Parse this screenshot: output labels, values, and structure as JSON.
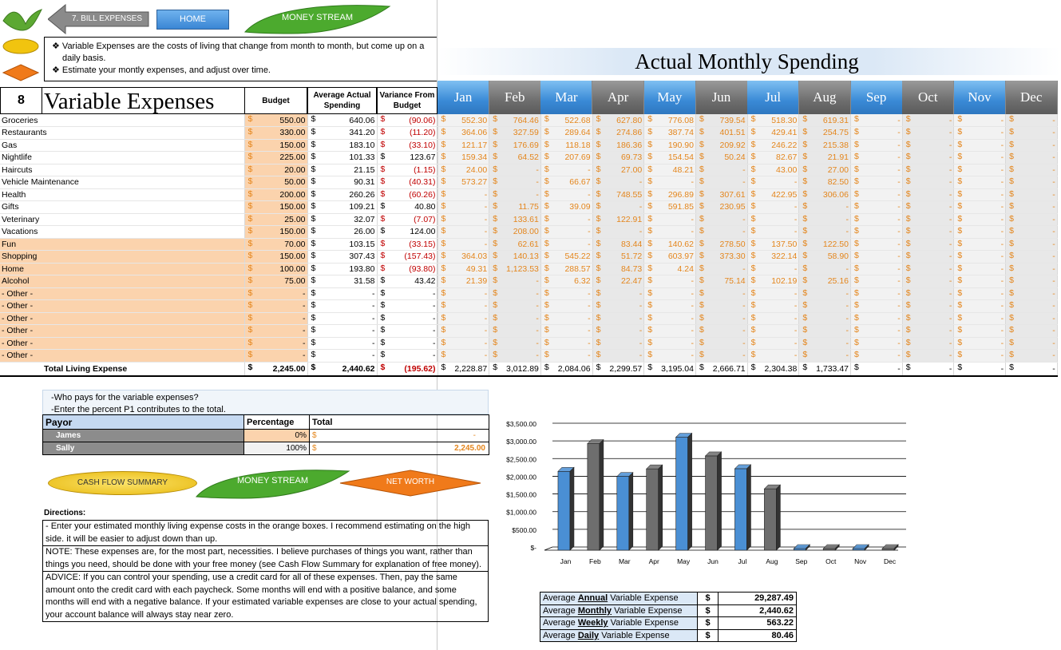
{
  "nav": {
    "back_label": "7. BILL EXPENSES",
    "home_label": "HOME",
    "money_stream_label": "MONEY STREAM"
  },
  "info": {
    "line1": "Variable Expenses are the costs of living that change from month to month, but come up on a daily basis.",
    "line2": "Estimate your montly expenses, and adjust over time."
  },
  "header": {
    "title": "Actual Monthly Spending",
    "section_number": "8",
    "section_title": "Variable Expenses",
    "col_budget": "Budget",
    "col_avg": "Average Actual Spending",
    "col_var": "Variance From Budget",
    "months": [
      "Jan",
      "Feb",
      "Mar",
      "Apr",
      "May",
      "Jun",
      "Jul",
      "Aug",
      "Sep",
      "Oct",
      "Nov",
      "Dec"
    ]
  },
  "rows": [
    {
      "label": "Groceries",
      "budget": "550.00",
      "avg": "640.06",
      "var": "(90.06)",
      "neg": true,
      "m": [
        "552.30",
        "764.46",
        "522.68",
        "627.80",
        "776.08",
        "739.54",
        "518.30",
        "619.31",
        "-",
        "-",
        "-",
        "-"
      ]
    },
    {
      "label": "Restaurants",
      "budget": "330.00",
      "avg": "341.20",
      "var": "(11.20)",
      "neg": true,
      "m": [
        "364.06",
        "327.59",
        "289.64",
        "274.86",
        "387.74",
        "401.51",
        "429.41",
        "254.75",
        "-",
        "-",
        "-",
        "-"
      ]
    },
    {
      "label": "Gas",
      "budget": "150.00",
      "avg": "183.10",
      "var": "(33.10)",
      "neg": true,
      "m": [
        "121.17",
        "176.69",
        "118.18",
        "186.36",
        "190.90",
        "209.92",
        "246.22",
        "215.38",
        "-",
        "-",
        "-",
        "-"
      ]
    },
    {
      "label": "Nightlife",
      "budget": "225.00",
      "avg": "101.33",
      "var": "123.67",
      "neg": false,
      "m": [
        "159.34",
        "64.52",
        "207.69",
        "69.73",
        "154.54",
        "50.24",
        "82.67",
        "21.91",
        "-",
        "-",
        "-",
        "-"
      ]
    },
    {
      "label": "Haircuts",
      "budget": "20.00",
      "avg": "21.15",
      "var": "(1.15)",
      "neg": true,
      "m": [
        "24.00",
        "-",
        "-",
        "27.00",
        "48.21",
        "-",
        "43.00",
        "27.00",
        "-",
        "-",
        "-",
        "-"
      ]
    },
    {
      "label": "Vehicle Maintenance",
      "budget": "50.00",
      "avg": "90.31",
      "var": "(40.31)",
      "neg": true,
      "m": [
        "573.27",
        "-",
        "66.67",
        "-",
        "-",
        "-",
        "-",
        "82.50",
        "-",
        "-",
        "-",
        "-"
      ]
    },
    {
      "label": "Health",
      "budget": "200.00",
      "avg": "260.26",
      "var": "(60.26)",
      "neg": true,
      "m": [
        "-",
        "-",
        "-",
        "748.55",
        "296.89",
        "307.61",
        "422.95",
        "306.06",
        "-",
        "-",
        "-",
        "-"
      ]
    },
    {
      "label": "Gifts",
      "budget": "150.00",
      "avg": "109.21",
      "var": "40.80",
      "neg": false,
      "m": [
        "-",
        "11.75",
        "39.09",
        "-",
        "591.85",
        "230.95",
        "-",
        "-",
        "-",
        "-",
        "-",
        "-"
      ]
    },
    {
      "label": "Veterinary",
      "budget": "25.00",
      "avg": "32.07",
      "var": "(7.07)",
      "neg": true,
      "m": [
        "-",
        "133.61",
        "-",
        "122.91",
        "-",
        "-",
        "-",
        "-",
        "-",
        "-",
        "-",
        "-"
      ]
    },
    {
      "label": "Vacations",
      "budget": "150.00",
      "avg": "26.00",
      "var": "124.00",
      "neg": false,
      "m": [
        "-",
        "208.00",
        "-",
        "-",
        "-",
        "-",
        "-",
        "-",
        "-",
        "-",
        "-",
        "-"
      ]
    },
    {
      "label": "Fun",
      "custom": true,
      "budget": "70.00",
      "avg": "103.15",
      "var": "(33.15)",
      "neg": true,
      "m": [
        "-",
        "62.61",
        "-",
        "83.44",
        "140.62",
        "278.50",
        "137.50",
        "122.50",
        "-",
        "-",
        "-",
        "-"
      ]
    },
    {
      "label": "Shopping",
      "custom": true,
      "budget": "150.00",
      "avg": "307.43",
      "var": "(157.43)",
      "neg": true,
      "m": [
        "364.03",
        "140.13",
        "545.22",
        "51.72",
        "603.97",
        "373.30",
        "322.14",
        "58.90",
        "-",
        "-",
        "-",
        "-"
      ]
    },
    {
      "label": "Home",
      "custom": true,
      "budget": "100.00",
      "avg": "193.80",
      "var": "(93.80)",
      "neg": true,
      "m": [
        "49.31",
        "1,123.53",
        "288.57",
        "84.73",
        "4.24",
        "-",
        "-",
        "-",
        "-",
        "-",
        "-",
        "-"
      ]
    },
    {
      "label": "Alcohol",
      "custom": true,
      "budget": "75.00",
      "avg": "31.58",
      "var": "43.42",
      "neg": false,
      "m": [
        "21.39",
        "-",
        "6.32",
        "22.47",
        "-",
        "75.14",
        "102.19",
        "25.16",
        "-",
        "-",
        "-",
        "-"
      ]
    },
    {
      "label": "- Other -",
      "custom": true,
      "budget": "-",
      "avg": "-",
      "var": "-",
      "neg": false,
      "m": [
        "-",
        "-",
        "-",
        "-",
        "-",
        "-",
        "-",
        "-",
        "-",
        "-",
        "-",
        "-"
      ]
    },
    {
      "label": "- Other -",
      "custom": true,
      "budget": "-",
      "avg": "-",
      "var": "-",
      "neg": false,
      "m": [
        "-",
        "-",
        "-",
        "-",
        "-",
        "-",
        "-",
        "-",
        "-",
        "-",
        "-",
        "-"
      ]
    },
    {
      "label": "- Other -",
      "custom": true,
      "budget": "-",
      "avg": "-",
      "var": "-",
      "neg": false,
      "m": [
        "-",
        "-",
        "-",
        "-",
        "-",
        "-",
        "-",
        "-",
        "-",
        "-",
        "-",
        "-"
      ]
    },
    {
      "label": "- Other -",
      "custom": true,
      "budget": "-",
      "avg": "-",
      "var": "-",
      "neg": false,
      "m": [
        "-",
        "-",
        "-",
        "-",
        "-",
        "-",
        "-",
        "-",
        "-",
        "-",
        "-",
        "-"
      ]
    },
    {
      "label": "- Other -",
      "custom": true,
      "budget": "-",
      "avg": "-",
      "var": "-",
      "neg": false,
      "m": [
        "-",
        "-",
        "-",
        "-",
        "-",
        "-",
        "-",
        "-",
        "-",
        "-",
        "-",
        "-"
      ]
    },
    {
      "label": "- Other -",
      "custom": true,
      "budget": "-",
      "avg": "-",
      "var": "-",
      "neg": false,
      "m": [
        "-",
        "-",
        "-",
        "-",
        "-",
        "-",
        "-",
        "-",
        "-",
        "-",
        "-",
        "-"
      ]
    }
  ],
  "total": {
    "label": "Total Living Expense",
    "budget": "2,245.00",
    "avg": "2,440.62",
    "var": "(195.62)",
    "m": [
      "2,228.87",
      "3,012.89",
      "2,084.06",
      "2,299.57",
      "3,195.04",
      "2,666.71",
      "2,304.38",
      "1,733.47",
      "-",
      "-",
      "-",
      "-"
    ]
  },
  "payor": {
    "q1": "-Who pays for the variable expenses?",
    "q2": "-Enter the percent P1 contributes to the total.",
    "h_payor": "Payor",
    "h_pct": "Percentage",
    "h_total": "Total",
    "p1_name": "James",
    "p1_pct": "0%",
    "p1_total": "-",
    "p2_name": "Sally",
    "p2_pct": "100%",
    "p2_total": "2,245.00"
  },
  "buttons": {
    "cash_flow": "CASH FLOW SUMMARY",
    "money_stream": "MONEY STREAM",
    "net_worth": "NET WORTH"
  },
  "directions": {
    "label": "Directions:",
    "p1": "- Enter your estimated monthly living expense costs in the orange boxes.  I recommend estimating on the high side. it will be easier to adjust down than up.",
    "p2": "NOTE: These expenses are, for the most part, necessities.  I believe purchases of things you want, rather than things you need, should be done with your free money (see Cash Flow Summary for explanation of free money).",
    "p3": "ADVICE: If you can control your spending, use a credit card for all of these expenses.  Then, pay the same amount onto the credit card with each paycheck.  Some months will end with a positive balance, and some months will end with a negative balance.  If your estimated variable expenses are close to your actual spending, your account balance will always stay near zero."
  },
  "averages": {
    "prefix": "Average",
    "suffix": "Variable Expense",
    "currency": "$",
    "items": [
      {
        "k": "Annual",
        "v": "29,287.49"
      },
      {
        "k": "Monthly",
        "v": "2,440.62"
      },
      {
        "k": "Weekly",
        "v": "563.22"
      },
      {
        "k": "Daily",
        "v": "80.46"
      }
    ]
  },
  "chart_data": {
    "type": "bar",
    "categories": [
      "Jan",
      "Feb",
      "Mar",
      "Apr",
      "May",
      "Jun",
      "Jul",
      "Aug",
      "Sep",
      "Oct",
      "Nov",
      "Dec"
    ],
    "values": [
      2228.87,
      3012.89,
      2084.06,
      2299.57,
      3195.04,
      2666.71,
      2304.38,
      1733.47,
      0,
      0,
      0,
      0
    ],
    "ylim": [
      0,
      3500
    ],
    "yticks": [
      "$-",
      "$500.00",
      "$1,000.00",
      "$1,500.00",
      "$2,000.00",
      "$2,500.00",
      "$3,000.00",
      "$3,500.00"
    ],
    "colors": [
      "#4a8fd4",
      "#6e6e6e"
    ],
    "grid": true
  },
  "colors": {
    "orange": "#e4861d",
    "budget_bg": "#fbd3ad",
    "red": "#c00000",
    "blue": "#3a8ad6",
    "gray": "#6e6e6e"
  }
}
